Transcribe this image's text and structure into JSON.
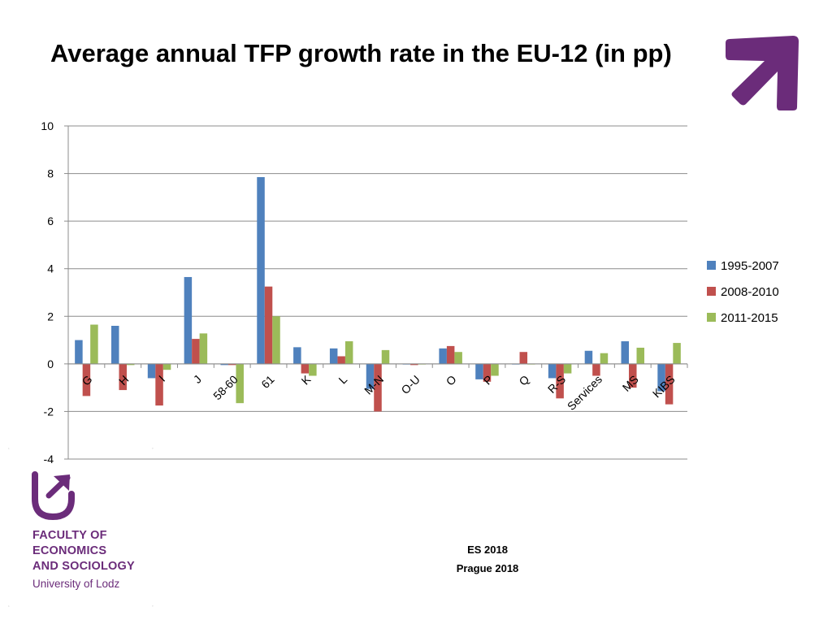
{
  "chart_data": {
    "type": "bar",
    "title": "Average annual TFP growth rate in the EU-12 (in pp)",
    "xlabel": "",
    "ylabel": "",
    "ylim": [
      -4,
      10
    ],
    "yticks": [
      -4,
      -2,
      0,
      2,
      4,
      6,
      8,
      10
    ],
    "grid": true,
    "legend_position": "right",
    "categories": [
      "G",
      "H",
      "I",
      "J",
      "58-60",
      "61",
      "K",
      "L",
      "M-N",
      "O-U",
      "O",
      "P",
      "Q",
      "R-S",
      "Services",
      "MS",
      "KIBS"
    ],
    "series": [
      {
        "name": "1995-2007",
        "color": "#4f81bd",
        "values": [
          1.0,
          1.6,
          -0.6,
          3.65,
          -0.05,
          7.85,
          0.7,
          0.65,
          -1.05,
          0.0,
          0.65,
          -0.65,
          0.0,
          -0.6,
          0.55,
          0.95,
          -1.15
        ]
      },
      {
        "name": "2008-2010",
        "color": "#c0504d",
        "values": [
          -1.35,
          -1.1,
          -1.75,
          1.05,
          -0.05,
          3.25,
          -0.4,
          0.32,
          -2.0,
          -0.05,
          0.75,
          -0.75,
          0.5,
          -1.45,
          -0.5,
          -1.0,
          -1.7
        ]
      },
      {
        "name": "2011-2015",
        "color": "#9bbb59",
        "values": [
          1.65,
          -0.05,
          -0.25,
          1.28,
          -1.65,
          2.0,
          -0.5,
          0.95,
          0.58,
          0.0,
          0.5,
          -0.5,
          0.0,
          -0.4,
          0.45,
          0.68,
          0.88
        ]
      }
    ]
  },
  "branding": {
    "faculty_lines": [
      "FACULTY OF",
      "ECONOMICS",
      "AND SOCIOLOGY"
    ],
    "university": "University of Lodz",
    "logo_color": "#6b2c7a"
  },
  "footer": {
    "event": "ES 2018",
    "place": "Prague 2018"
  }
}
